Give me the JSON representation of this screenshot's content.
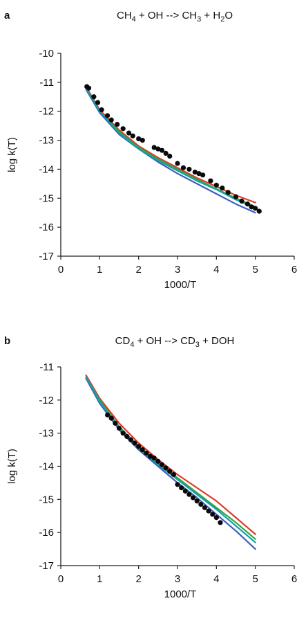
{
  "chart_data": [
    {
      "panel_label": "a",
      "title": {
        "pre": "CH",
        "s1": "4",
        "mid": " + OH --> CH",
        "s2": "3",
        "mid2": " + H",
        "s3": "2",
        "post": "O"
      },
      "type": "line",
      "xlabel": "1000/T",
      "ylabel": "log k(T)",
      "xlim": [
        0,
        6
      ],
      "ylim": [
        -17,
        -10
      ],
      "xticks": [
        "0",
        "1",
        "2",
        "3",
        "4",
        "5",
        "6"
      ],
      "yticks": [
        "-10",
        "-11",
        "-12",
        "-13",
        "-14",
        "-15",
        "-16",
        "-17"
      ],
      "series": [
        {
          "color": "#e03a2a",
          "x": [
            0.65,
            1.0,
            1.5,
            2.0,
            2.5,
            3.0,
            3.5,
            4.0,
            4.5,
            5.0
          ],
          "y": [
            -11.15,
            -11.95,
            -12.65,
            -13.2,
            -13.6,
            -13.95,
            -14.3,
            -14.6,
            -14.9,
            -15.15
          ]
        },
        {
          "color": "#2ca84a",
          "x": [
            0.65,
            1.0,
            1.5,
            2.0,
            2.5,
            3.0,
            3.5,
            4.0,
            4.5,
            5.0
          ],
          "y": [
            -11.2,
            -12.0,
            -12.7,
            -13.25,
            -13.65,
            -14.0,
            -14.35,
            -14.68,
            -15.0,
            -15.3
          ]
        },
        {
          "color": "#3c5fc0",
          "x": [
            0.65,
            1.0,
            1.5,
            2.0,
            2.5,
            3.0,
            3.5,
            4.0,
            4.5,
            5.0
          ],
          "y": [
            -11.25,
            -12.05,
            -12.8,
            -13.3,
            -13.75,
            -14.15,
            -14.5,
            -14.85,
            -15.2,
            -15.5
          ]
        },
        {
          "color": "#18a0a0",
          "x": [
            0.65,
            1.0,
            1.5,
            2.0,
            2.5,
            3.0,
            3.5,
            4.0,
            4.5,
            5.0
          ],
          "y": [
            -11.2,
            -12.0,
            -12.75,
            -13.3,
            -13.7,
            -14.05,
            -14.4,
            -14.7,
            -15.05,
            -15.35
          ]
        }
      ],
      "points": {
        "x": [
          0.67,
          0.72,
          0.85,
          0.95,
          1.05,
          1.2,
          1.3,
          1.45,
          1.6,
          1.75,
          1.85,
          2.0,
          2.1,
          2.4,
          2.5,
          2.6,
          2.7,
          2.8,
          3.0,
          3.15,
          3.3,
          3.45,
          3.55,
          3.65,
          3.85,
          4.0,
          4.15,
          4.3,
          4.5,
          4.65,
          4.8,
          4.9,
          5.0,
          5.1
        ],
        "y": [
          -11.15,
          -11.2,
          -11.5,
          -11.7,
          -11.95,
          -12.15,
          -12.3,
          -12.45,
          -12.6,
          -12.75,
          -12.85,
          -12.95,
          -13.0,
          -13.25,
          -13.3,
          -13.35,
          -13.45,
          -13.55,
          -13.8,
          -13.95,
          -14.0,
          -14.1,
          -14.15,
          -14.2,
          -14.4,
          -14.55,
          -14.65,
          -14.8,
          -14.95,
          -15.1,
          -15.2,
          -15.3,
          -15.35,
          -15.45
        ]
      }
    },
    {
      "panel_label": "b",
      "title": {
        "pre": "CD",
        "s1": "4",
        "mid": " + OH --> CD",
        "s2": "3",
        "mid2": " + DOH",
        "s3": "",
        "post": ""
      },
      "type": "line",
      "xlabel": "1000/T",
      "ylabel": "log k(T)",
      "xlim": [
        0,
        6
      ],
      "ylim": [
        -17,
        -11
      ],
      "xticks": [
        "0",
        "1",
        "2",
        "3",
        "4",
        "5",
        "6"
      ],
      "yticks": [
        "-11",
        "-12",
        "-13",
        "-14",
        "-15",
        "-16",
        "-17"
      ],
      "series": [
        {
          "color": "#e03a2a",
          "x": [
            0.65,
            1.0,
            1.5,
            2.0,
            2.5,
            3.0,
            3.5,
            4.0,
            4.5,
            5.0
          ],
          "y": [
            -11.25,
            -11.95,
            -12.7,
            -13.3,
            -13.8,
            -14.25,
            -14.65,
            -15.05,
            -15.55,
            -16.05
          ]
        },
        {
          "color": "#2ca84a",
          "x": [
            0.65,
            1.0,
            1.5,
            2.0,
            2.5,
            3.0,
            3.5,
            4.0,
            4.5,
            5.0
          ],
          "y": [
            -11.3,
            -12.0,
            -12.8,
            -13.4,
            -13.9,
            -14.35,
            -14.8,
            -15.25,
            -15.7,
            -16.2
          ]
        },
        {
          "color": "#3c5fc0",
          "x": [
            0.65,
            1.0,
            1.5,
            2.0,
            2.5,
            3.0,
            3.5,
            4.0,
            4.5,
            5.0
          ],
          "y": [
            -11.35,
            -12.1,
            -12.9,
            -13.5,
            -14.0,
            -14.5,
            -14.95,
            -15.45,
            -15.95,
            -16.5
          ]
        },
        {
          "color": "#18a0a0",
          "x": [
            0.65,
            1.0,
            1.5,
            2.0,
            2.5,
            3.0,
            3.5,
            4.0,
            4.5,
            5.0
          ],
          "y": [
            -11.3,
            -12.05,
            -12.85,
            -13.45,
            -13.95,
            -14.4,
            -14.85,
            -15.3,
            -15.8,
            -16.3
          ]
        }
      ],
      "points": {
        "x": [
          1.2,
          1.3,
          1.4,
          1.5,
          1.6,
          1.7,
          1.8,
          1.9,
          2.0,
          2.1,
          2.2,
          2.3,
          2.4,
          2.5,
          2.6,
          2.7,
          2.8,
          2.9,
          3.0,
          3.1,
          3.2,
          3.3,
          3.4,
          3.5,
          3.6,
          3.7,
          3.8,
          3.9,
          4.0,
          4.1
        ],
        "y": [
          -12.45,
          -12.55,
          -12.7,
          -12.85,
          -13.0,
          -13.1,
          -13.2,
          -13.3,
          -13.4,
          -13.5,
          -13.6,
          -13.7,
          -13.75,
          -13.85,
          -13.95,
          -14.05,
          -14.15,
          -14.25,
          -14.55,
          -14.65,
          -14.75,
          -14.85,
          -14.95,
          -15.05,
          -15.15,
          -15.25,
          -15.35,
          -15.45,
          -15.55,
          -15.7
        ]
      }
    }
  ]
}
